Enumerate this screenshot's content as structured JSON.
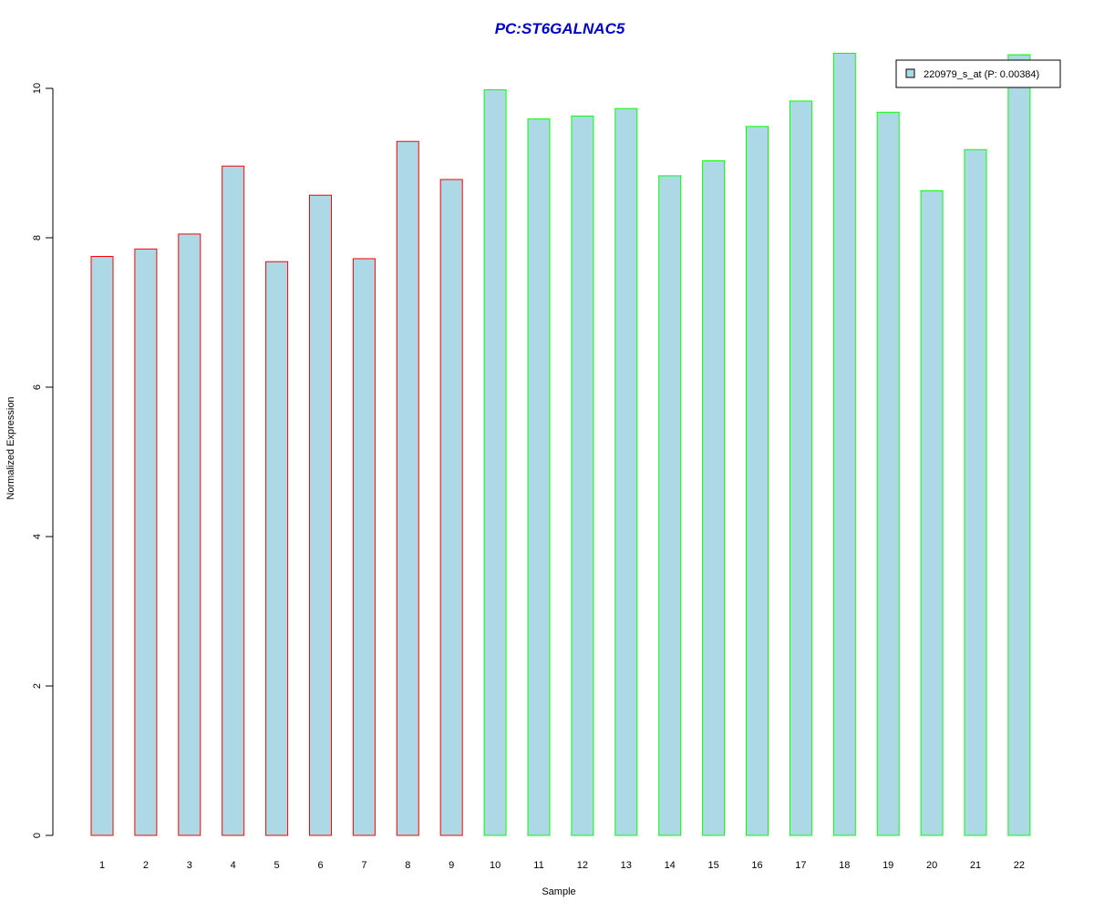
{
  "chart_data": {
    "type": "bar",
    "title": "PC:ST6GALNAC5",
    "title_color": "#0000CC",
    "xlabel": "Sample",
    "ylabel": "Normalized Expression",
    "categories": [
      "1",
      "2",
      "3",
      "4",
      "5",
      "6",
      "7",
      "8",
      "9",
      "10",
      "11",
      "12",
      "13",
      "14",
      "15",
      "16",
      "17",
      "18",
      "19",
      "20",
      "21",
      "22"
    ],
    "values": [
      7.75,
      7.85,
      8.05,
      8.96,
      7.68,
      8.57,
      7.72,
      9.29,
      8.78,
      9.98,
      9.59,
      9.63,
      9.73,
      8.83,
      9.03,
      9.49,
      9.83,
      10.47,
      9.68,
      8.63,
      9.18,
      10.45
    ],
    "groups": [
      "red",
      "red",
      "red",
      "red",
      "red",
      "red",
      "red",
      "red",
      "red",
      "green",
      "green",
      "green",
      "green",
      "green",
      "green",
      "green",
      "green",
      "green",
      "green",
      "green",
      "green",
      "green"
    ],
    "colors": {
      "fill": "#ADD8E6",
      "red": "#FF0000",
      "green": "#00FF00"
    },
    "yticks": [
      0,
      2,
      4,
      6,
      8,
      10
    ],
    "ylim": [
      0,
      10.5
    ],
    "grid": false,
    "legend": {
      "placement": "top-right",
      "label": "220979_s_at (P: 0.00384)"
    }
  }
}
